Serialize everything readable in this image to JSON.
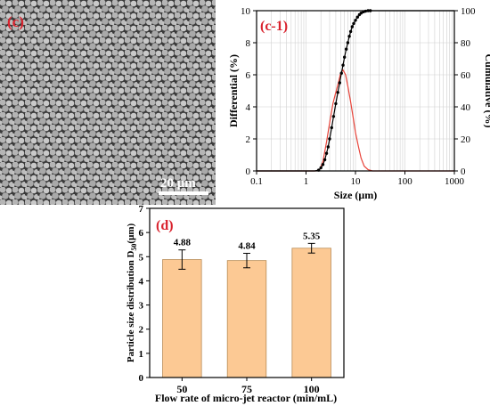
{
  "panel_c": {
    "label": "(c)",
    "scale_bar": "20 μm"
  },
  "chart_data": [
    {
      "id": "c-1",
      "type": "line",
      "panel_label": "(c-1)",
      "xlabel": "Size (μm)",
      "ylabel_left": "Differential (%)",
      "ylabel_right": "Cumulative (%)",
      "xscale": "log",
      "xlim": [
        0.1,
        1000
      ],
      "ylim_left": [
        0,
        10
      ],
      "ylim_right": [
        0,
        100
      ],
      "x_ticks": [
        "0.1",
        "1",
        "10",
        "100",
        "1000"
      ],
      "y_ticks_left": [
        "0",
        "2",
        "4",
        "6",
        "8",
        "10"
      ],
      "y_ticks_right": [
        "0",
        "20",
        "40",
        "60",
        "80",
        "100"
      ],
      "grid": true,
      "colors": {
        "differential": "#e8443a",
        "cumulative": "#000000"
      },
      "series": [
        {
          "axis": "left",
          "x": [
            0.1,
            1.0,
            1.6,
            1.9,
            2.2,
            2.6,
            3.0,
            3.5,
            4.0,
            4.5,
            5.0,
            5.6,
            6.3,
            7.0,
            8.0,
            9.0,
            10.0,
            11.5,
            13.0,
            15.0,
            18.0,
            22.0,
            30.0,
            100.0,
            1000.0
          ],
          "y": [
            0,
            0,
            0,
            0.1,
            0.6,
            1.8,
            3.0,
            4.2,
            4.9,
            5.5,
            6.1,
            6.3,
            6.0,
            5.3,
            4.3,
            3.3,
            2.4,
            1.5,
            0.8,
            0.3,
            0.08,
            0,
            0,
            0,
            0
          ]
        },
        {
          "axis": "right",
          "x": [
            0.1,
            1.0,
            1.5,
            1.8,
            2.0,
            2.2,
            2.4,
            2.6,
            2.8,
            3.0,
            3.3,
            3.6,
            4.0,
            4.4,
            4.8,
            5.2,
            5.6,
            6.0,
            6.5,
            7.0,
            7.5,
            8.0,
            8.6,
            9.2,
            10.0,
            11.0,
            12.0,
            13.0,
            14.5,
            16.0,
            18.0,
            20.0,
            25.0,
            30.0,
            100.0,
            1000.0
          ],
          "y": [
            0,
            0,
            0,
            0.5,
            2,
            4,
            7,
            11,
            15,
            20,
            27,
            34,
            42,
            49,
            55,
            61,
            66,
            71,
            76,
            80,
            84,
            87,
            90,
            92,
            94,
            96,
            97.5,
            98.5,
            99.3,
            99.7,
            100,
            100,
            100,
            100,
            100,
            100
          ]
        }
      ]
    },
    {
      "id": "d",
      "type": "bar",
      "panel_label": "(d)",
      "xlabel": "Flow rate of micro-jet reactor (min/mL)",
      "ylabel": "Particle size distribution D50(μm)",
      "categories": [
        "50",
        "75",
        "100"
      ],
      "values": [
        4.88,
        4.84,
        5.35
      ],
      "value_labels": [
        "4.88",
        "4.84",
        "5.35"
      ],
      "errors": [
        0.4,
        0.3,
        0.2
      ],
      "ylim": [
        0,
        7
      ],
      "y_ticks": [
        "0",
        "1",
        "2",
        "3",
        "4",
        "5",
        "6",
        "7"
      ],
      "bar_color": "#fcc994",
      "bar_edge": "#b88b55"
    }
  ]
}
